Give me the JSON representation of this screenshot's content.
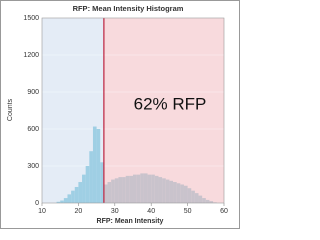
{
  "chart_data": {
    "type": "histogram",
    "title": "RFP: Mean Intensity Histogram",
    "x_label": "RFP: Mean Intensity",
    "y_label": "Counts",
    "annotation": "62% RFP",
    "bins": [
      14,
      15,
      16,
      17,
      18,
      19,
      20,
      21,
      22,
      23,
      24,
      25,
      26,
      27,
      28,
      29,
      30,
      31,
      32,
      33,
      34,
      35,
      36,
      37,
      38,
      39,
      40,
      41,
      42,
      43,
      44,
      45,
      46,
      47,
      48,
      49,
      50,
      51,
      52,
      53,
      54,
      55,
      56,
      57,
      58
    ],
    "counts": [
      10,
      20,
      40,
      70,
      100,
      130,
      170,
      230,
      300,
      420,
      620,
      600,
      330,
      150,
      170,
      190,
      200,
      210,
      210,
      220,
      220,
      230,
      230,
      240,
      240,
      230,
      230,
      220,
      210,
      200,
      190,
      180,
      170,
      160,
      150,
      140,
      120,
      100,
      80,
      60,
      40,
      25,
      15,
      5
    ],
    "threshold": 27,
    "left_color": "#9fcfe4",
    "right_color": "#c9c3cc",
    "left_region_color": "#e4ecf6",
    "right_region_color": "#f8dadd",
    "threshold_color": "#c0304a",
    "xlim": [
      10,
      60
    ],
    "xticks": [
      10,
      20,
      30,
      40,
      50,
      60
    ],
    "ylim": [
      0,
      1500
    ],
    "yticks": [
      0,
      300,
      600,
      900,
      1200,
      1500
    ],
    "grid": true
  }
}
